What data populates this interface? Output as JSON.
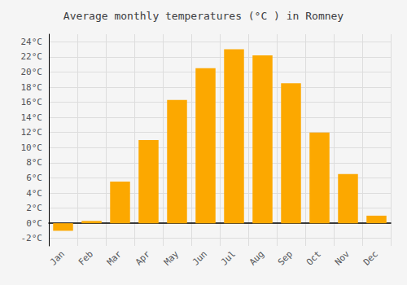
{
  "chart_data": {
    "type": "bar",
    "title": "Average monthly temperatures (°C ) in Romney",
    "categories": [
      "Jan",
      "Feb",
      "Mar",
      "Apr",
      "May",
      "Jun",
      "Jul",
      "Aug",
      "Sep",
      "Oct",
      "Nov",
      "Dec"
    ],
    "values": [
      -1.0,
      0.3,
      5.5,
      11.0,
      16.3,
      20.5,
      23.0,
      22.2,
      18.5,
      12.0,
      6.5,
      1.0
    ],
    "color": "#FCA800",
    "ylim": [
      -3,
      25
    ],
    "yticks": [
      {
        "value": -2,
        "label": "-2°C"
      },
      {
        "value": 0,
        "label": "0°C"
      },
      {
        "value": 2,
        "label": "2°C"
      },
      {
        "value": 4,
        "label": "4°C"
      },
      {
        "value": 6,
        "label": "6°C"
      },
      {
        "value": 8,
        "label": "8°C"
      },
      {
        "value": 10,
        "label": "10°C"
      },
      {
        "value": 12,
        "label": "12°C"
      },
      {
        "value": 14,
        "label": "14°C"
      },
      {
        "value": 16,
        "label": "16°C"
      },
      {
        "value": 18,
        "label": "18°C"
      },
      {
        "value": 20,
        "label": "20°C"
      },
      {
        "value": 22,
        "label": "22°C"
      },
      {
        "value": 24,
        "label": "24°C"
      }
    ],
    "grid": true
  }
}
